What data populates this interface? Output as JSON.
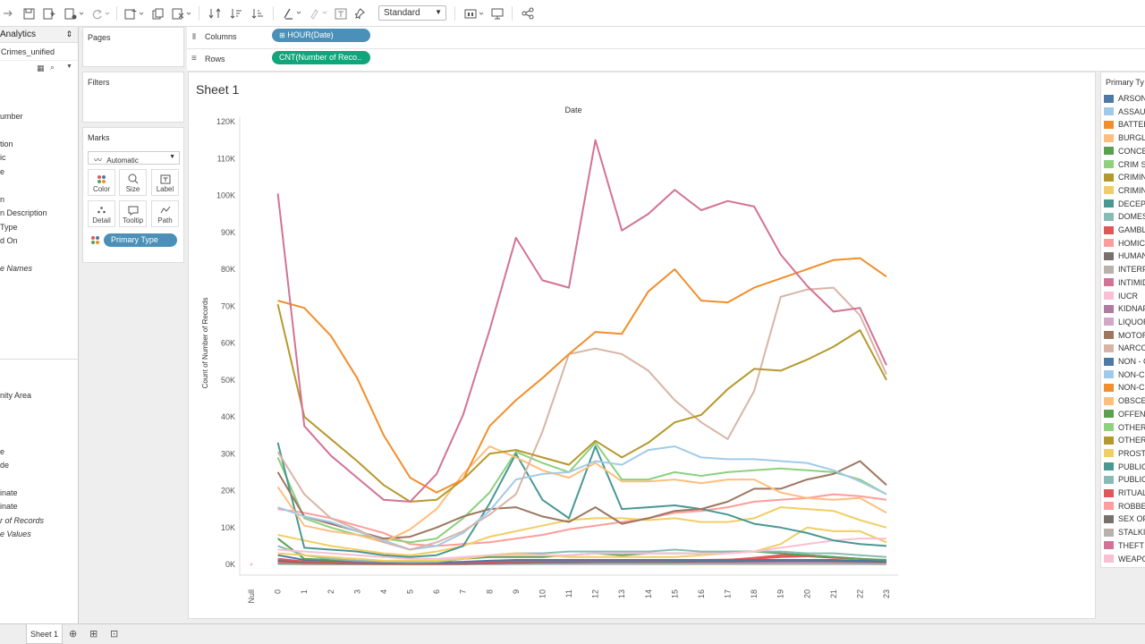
{
  "toolbar": {
    "fit": "Standard"
  },
  "data_pane": {
    "title": "Analytics",
    "source": "Crimes_unified",
    "fields_top": [
      "umber",
      "tion",
      "ic",
      "e",
      "n",
      "n Description",
      " Type",
      "d On"
    ],
    "field_names_label": "e Names",
    "fields_bottom": [
      "nity Area",
      "e",
      "de",
      "inate",
      "inate"
    ],
    "measure_count": "r of Records",
    "measure_values": "e Values"
  },
  "shelves": {
    "pages": "Pages",
    "filters": "Filters",
    "marks": "Marks",
    "mark_type": "Automatic",
    "mark_buttons": [
      "Color",
      "Size",
      "Label",
      "Detail",
      "Tooltip",
      "Path"
    ],
    "color_pill": "Primary Type",
    "columns_label": "Columns",
    "columns_pill": "HOUR(Date)",
    "rows_label": "Rows",
    "rows_pill": "CNT(Number of Reco.."
  },
  "sheet": {
    "title": "Sheet 1"
  },
  "legend": {
    "title": "Primary Ty",
    "items": [
      {
        "label": "ARSON",
        "color": "#4e79a7"
      },
      {
        "label": "ASSAUL",
        "color": "#a0cbe8"
      },
      {
        "label": "BATTER",
        "color": "#f28e2b"
      },
      {
        "label": "BURGLA",
        "color": "#ffbe7d"
      },
      {
        "label": "CONCEA",
        "color": "#59a14f"
      },
      {
        "label": "CRIM SE",
        "color": "#8cd17d"
      },
      {
        "label": "CRIMIN",
        "color": "#b6992d"
      },
      {
        "label": "CRIMIN",
        "color": "#f1ce63"
      },
      {
        "label": "DECEPT",
        "color": "#499894"
      },
      {
        "label": "DOMEST",
        "color": "#86bcb6"
      },
      {
        "label": "GAMBLI",
        "color": "#e15759"
      },
      {
        "label": "HOMICI",
        "color": "#ff9d9a"
      },
      {
        "label": "HUMAN",
        "color": "#79706e"
      },
      {
        "label": "INTERF",
        "color": "#bab0ac"
      },
      {
        "label": "INTIMID",
        "color": "#d37295"
      },
      {
        "label": "IUCR",
        "color": "#fabfd2"
      },
      {
        "label": "KIDNAP",
        "color": "#b07aa1"
      },
      {
        "label": "LIQUOR",
        "color": "#d4a6c8"
      },
      {
        "label": "MOTOR",
        "color": "#9d7660"
      },
      {
        "label": "NARCOT",
        "color": "#d7b5a6"
      },
      {
        "label": "NON - C",
        "color": "#4e79a7"
      },
      {
        "label": "NON-CR",
        "color": "#a0cbe8"
      },
      {
        "label": "NON-CR",
        "color": "#f28e2b"
      },
      {
        "label": "OBSCEN",
        "color": "#ffbe7d"
      },
      {
        "label": "OFFENS",
        "color": "#59a14f"
      },
      {
        "label": "OTHER I",
        "color": "#8cd17d"
      },
      {
        "label": "OTHER O",
        "color": "#b6992d"
      },
      {
        "label": "PROSTIT",
        "color": "#f1ce63"
      },
      {
        "label": "PUBLIC",
        "color": "#499894"
      },
      {
        "label": "PUBLIC",
        "color": "#86bcb6"
      },
      {
        "label": "RITUALI",
        "color": "#e15759"
      },
      {
        "label": "ROBBER",
        "color": "#ff9d9a"
      },
      {
        "label": "SEX OFF",
        "color": "#79706e"
      },
      {
        "label": "STALKIN",
        "color": "#bab0ac"
      },
      {
        "label": "THEFT",
        "color": "#d37295"
      },
      {
        "label": "WEAPO",
        "color": "#fabfd2"
      }
    ]
  },
  "chart_data": {
    "type": "line",
    "title": "Date",
    "xlabel": "",
    "ylabel": "Count of Number of Records",
    "x": [
      "Null",
      "0",
      "1",
      "2",
      "3",
      "4",
      "5",
      "6",
      "7",
      "8",
      "9",
      "10",
      "11",
      "12",
      "13",
      "14",
      "15",
      "16",
      "17",
      "18",
      "19",
      "20",
      "21",
      "22",
      "23"
    ],
    "yticks": [
      "0K",
      "10K",
      "20K",
      "30K",
      "40K",
      "50K",
      "60K",
      "70K",
      "80K",
      "90K",
      "100K",
      "110K",
      "120K"
    ],
    "ylim": [
      0,
      120000
    ],
    "grid": false,
    "legend": "right",
    "series": [
      {
        "color": "#d37295",
        "values": [
          0,
          100500,
          37500,
          29500,
          23500,
          17500,
          17000,
          24500,
          40500,
          63500,
          88500,
          77000,
          75000,
          115000,
          90500,
          95000,
          101500,
          96000,
          98500,
          97000,
          84000,
          75500,
          68500,
          69500,
          54000
        ]
      },
      {
        "color": "#f28e2b",
        "values": [
          0,
          71500,
          69500,
          62000,
          50500,
          35000,
          23500,
          19500,
          23000,
          37500,
          44500,
          50500,
          57000,
          63000,
          62500,
          74000,
          80000,
          71500,
          71000,
          75000,
          77500,
          80000,
          82500,
          83000,
          78000
        ]
      },
      {
        "color": "#b6992d",
        "values": [
          0,
          70500,
          40000,
          34000,
          28000,
          21500,
          17000,
          17500,
          23000,
          30000,
          31000,
          29000,
          27000,
          33500,
          29000,
          33000,
          38500,
          40500,
          47500,
          53000,
          52500,
          55500,
          59000,
          63500,
          50000
        ]
      },
      {
        "color": "#d7b5a6",
        "values": [
          0,
          30500,
          19000,
          12500,
          9500,
          6000,
          4000,
          6000,
          9000,
          13500,
          19000,
          36000,
          57000,
          58500,
          57000,
          52500,
          44500,
          38500,
          34000,
          47000,
          72500,
          74500,
          75000,
          67500,
          51500
        ]
      },
      {
        "color": "#a0cbe8",
        "values": [
          0,
          15500,
          13000,
          11500,
          9000,
          6500,
          4000,
          5000,
          8500,
          14500,
          23000,
          24500,
          25000,
          28000,
          27000,
          31000,
          32000,
          29000,
          28500,
          28500,
          28000,
          27500,
          25500,
          22500,
          19000
        ]
      },
      {
        "color": "#ffbe7d",
        "values": [
          0,
          21000,
          10500,
          9000,
          8000,
          6000,
          9500,
          15000,
          24500,
          32000,
          29000,
          25500,
          23500,
          27500,
          22500,
          22500,
          23000,
          22000,
          23000,
          23000,
          19500,
          18000,
          17500,
          18000,
          14000
        ]
      },
      {
        "color": "#9d7660",
        "values": [
          0,
          25000,
          13000,
          11000,
          9000,
          7000,
          7500,
          10000,
          13000,
          15000,
          15500,
          13000,
          11500,
          15500,
          11000,
          12500,
          14500,
          15000,
          17000,
          20500,
          20500,
          23000,
          24500,
          28000,
          21500
        ]
      },
      {
        "color": "#499894",
        "values": [
          0,
          33000,
          4500,
          4000,
          3500,
          2500,
          2000,
          2500,
          5000,
          16500,
          30000,
          17500,
          12500,
          32000,
          15000,
          15500,
          16000,
          15000,
          13500,
          11000,
          10000,
          8500,
          6500,
          5500,
          5000
        ]
      },
      {
        "color": "#8cd17d",
        "values": [
          0,
          29000,
          12500,
          10000,
          8000,
          7000,
          6000,
          7000,
          12500,
          19500,
          30500,
          27500,
          25000,
          33000,
          23000,
          23000,
          25000,
          24000,
          25000,
          25500,
          26000,
          25500,
          25000,
          23000,
          19000
        ]
      },
      {
        "color": "#f1ce63",
        "values": [
          0,
          8000,
          6500,
          5000,
          4000,
          3000,
          2500,
          3500,
          5000,
          7500,
          9000,
          10500,
          12000,
          12500,
          12500,
          12000,
          12500,
          11500,
          11500,
          12500,
          15500,
          15000,
          14500,
          12000,
          10000
        ]
      },
      {
        "color": "#ff9d9a",
        "values": [
          0,
          15000,
          14000,
          12500,
          10500,
          8500,
          5500,
          5000,
          5500,
          6000,
          7000,
          8000,
          9500,
          10500,
          11500,
          12500,
          14000,
          14500,
          15500,
          17000,
          17500,
          18000,
          19000,
          18500,
          17500
        ]
      },
      {
        "color": "#fabfd2",
        "values": [
          0,
          4000,
          3500,
          3000,
          2500,
          2000,
          1500,
          1500,
          2000,
          2500,
          2500,
          2500,
          2500,
          3000,
          3000,
          3000,
          3000,
          3000,
          3000,
          3500,
          4500,
          5500,
          6500,
          7000,
          7000
        ]
      },
      {
        "color": "#f1ce63",
        "values": [
          0,
          3000,
          2500,
          2000,
          1500,
          1000,
          1000,
          1000,
          1500,
          2500,
          3000,
          2500,
          2000,
          2000,
          2000,
          2000,
          2000,
          2500,
          3000,
          3500,
          5500,
          10000,
          9000,
          9000,
          6000
        ]
      },
      {
        "color": "#86bcb6",
        "values": [
          0,
          5000,
          2500,
          1500,
          1000,
          800,
          600,
          700,
          1500,
          2500,
          3000,
          3000,
          3500,
          3500,
          3500,
          3500,
          4000,
          3500,
          3500,
          3500,
          3500,
          3000,
          3000,
          2500,
          2000
        ]
      },
      {
        "color": "#59a14f",
        "values": [
          0,
          7000,
          1500,
          1200,
          1000,
          800,
          600,
          700,
          1500,
          2000,
          2000,
          2000,
          2500,
          3000,
          2500,
          3000,
          3000,
          3000,
          3500,
          3500,
          3000,
          2500,
          2000,
          1500,
          1200
        ]
      },
      {
        "color": "#4e79a7",
        "values": [
          0,
          2500,
          1200,
          1000,
          800,
          600,
          500,
          500,
          700,
          1000,
          1200,
          1200,
          1200,
          1200,
          1200,
          1200,
          1200,
          1200,
          1200,
          1200,
          1200,
          1200,
          1200,
          1000,
          900
        ]
      },
      {
        "color": "#e15759",
        "values": [
          0,
          1500,
          800,
          600,
          500,
          400,
          300,
          300,
          400,
          600,
          800,
          900,
          1000,
          1000,
          1000,
          1000,
          1100,
          1200,
          1300,
          1500,
          2000,
          2200,
          1800,
          1500,
          1000
        ]
      },
      {
        "color": "#79706e",
        "values": [
          0,
          1000,
          500,
          400,
          300,
          200,
          150,
          150,
          200,
          300,
          500,
          600,
          600,
          700,
          700,
          700,
          700,
          800,
          800,
          900,
          1000,
          1000,
          900,
          800,
          700
        ]
      },
      {
        "color": "#b07aa1",
        "values": [
          0,
          1000,
          600,
          400,
          300,
          200,
          150,
          150,
          200,
          300,
          400,
          500,
          500,
          600,
          600,
          600,
          600,
          600,
          600,
          600,
          700,
          700,
          700,
          600,
          500
        ]
      },
      {
        "color": "#e15759",
        "values": [
          0,
          700,
          400,
          300,
          200,
          150,
          100,
          100,
          150,
          300,
          400,
          500,
          600,
          600,
          700,
          700,
          800,
          900,
          1200,
          1800,
          2500,
          2500,
          2000,
          1500,
          1000
        ]
      },
      {
        "color": "#bab0ac",
        "values": [
          0,
          500,
          300,
          200,
          150,
          100,
          80,
          80,
          100,
          200,
          300,
          300,
          300,
          300,
          300,
          300,
          300,
          300,
          300,
          300,
          300,
          300,
          300,
          300,
          300
        ]
      },
      {
        "color": "#b6992d",
        "values": [
          0,
          400,
          200,
          150,
          100,
          80,
          60,
          60,
          100,
          200,
          300,
          300,
          300,
          300,
          300,
          300,
          300,
          300,
          300,
          300,
          300,
          300,
          300,
          300,
          250
        ]
      },
      {
        "color": "#4e79a7",
        "values": [
          0,
          200,
          100,
          80,
          60,
          50,
          40,
          40,
          60,
          100,
          150,
          150,
          150,
          150,
          150,
          150,
          150,
          150,
          150,
          150,
          150,
          150,
          150,
          150,
          120
        ]
      }
    ]
  }
}
